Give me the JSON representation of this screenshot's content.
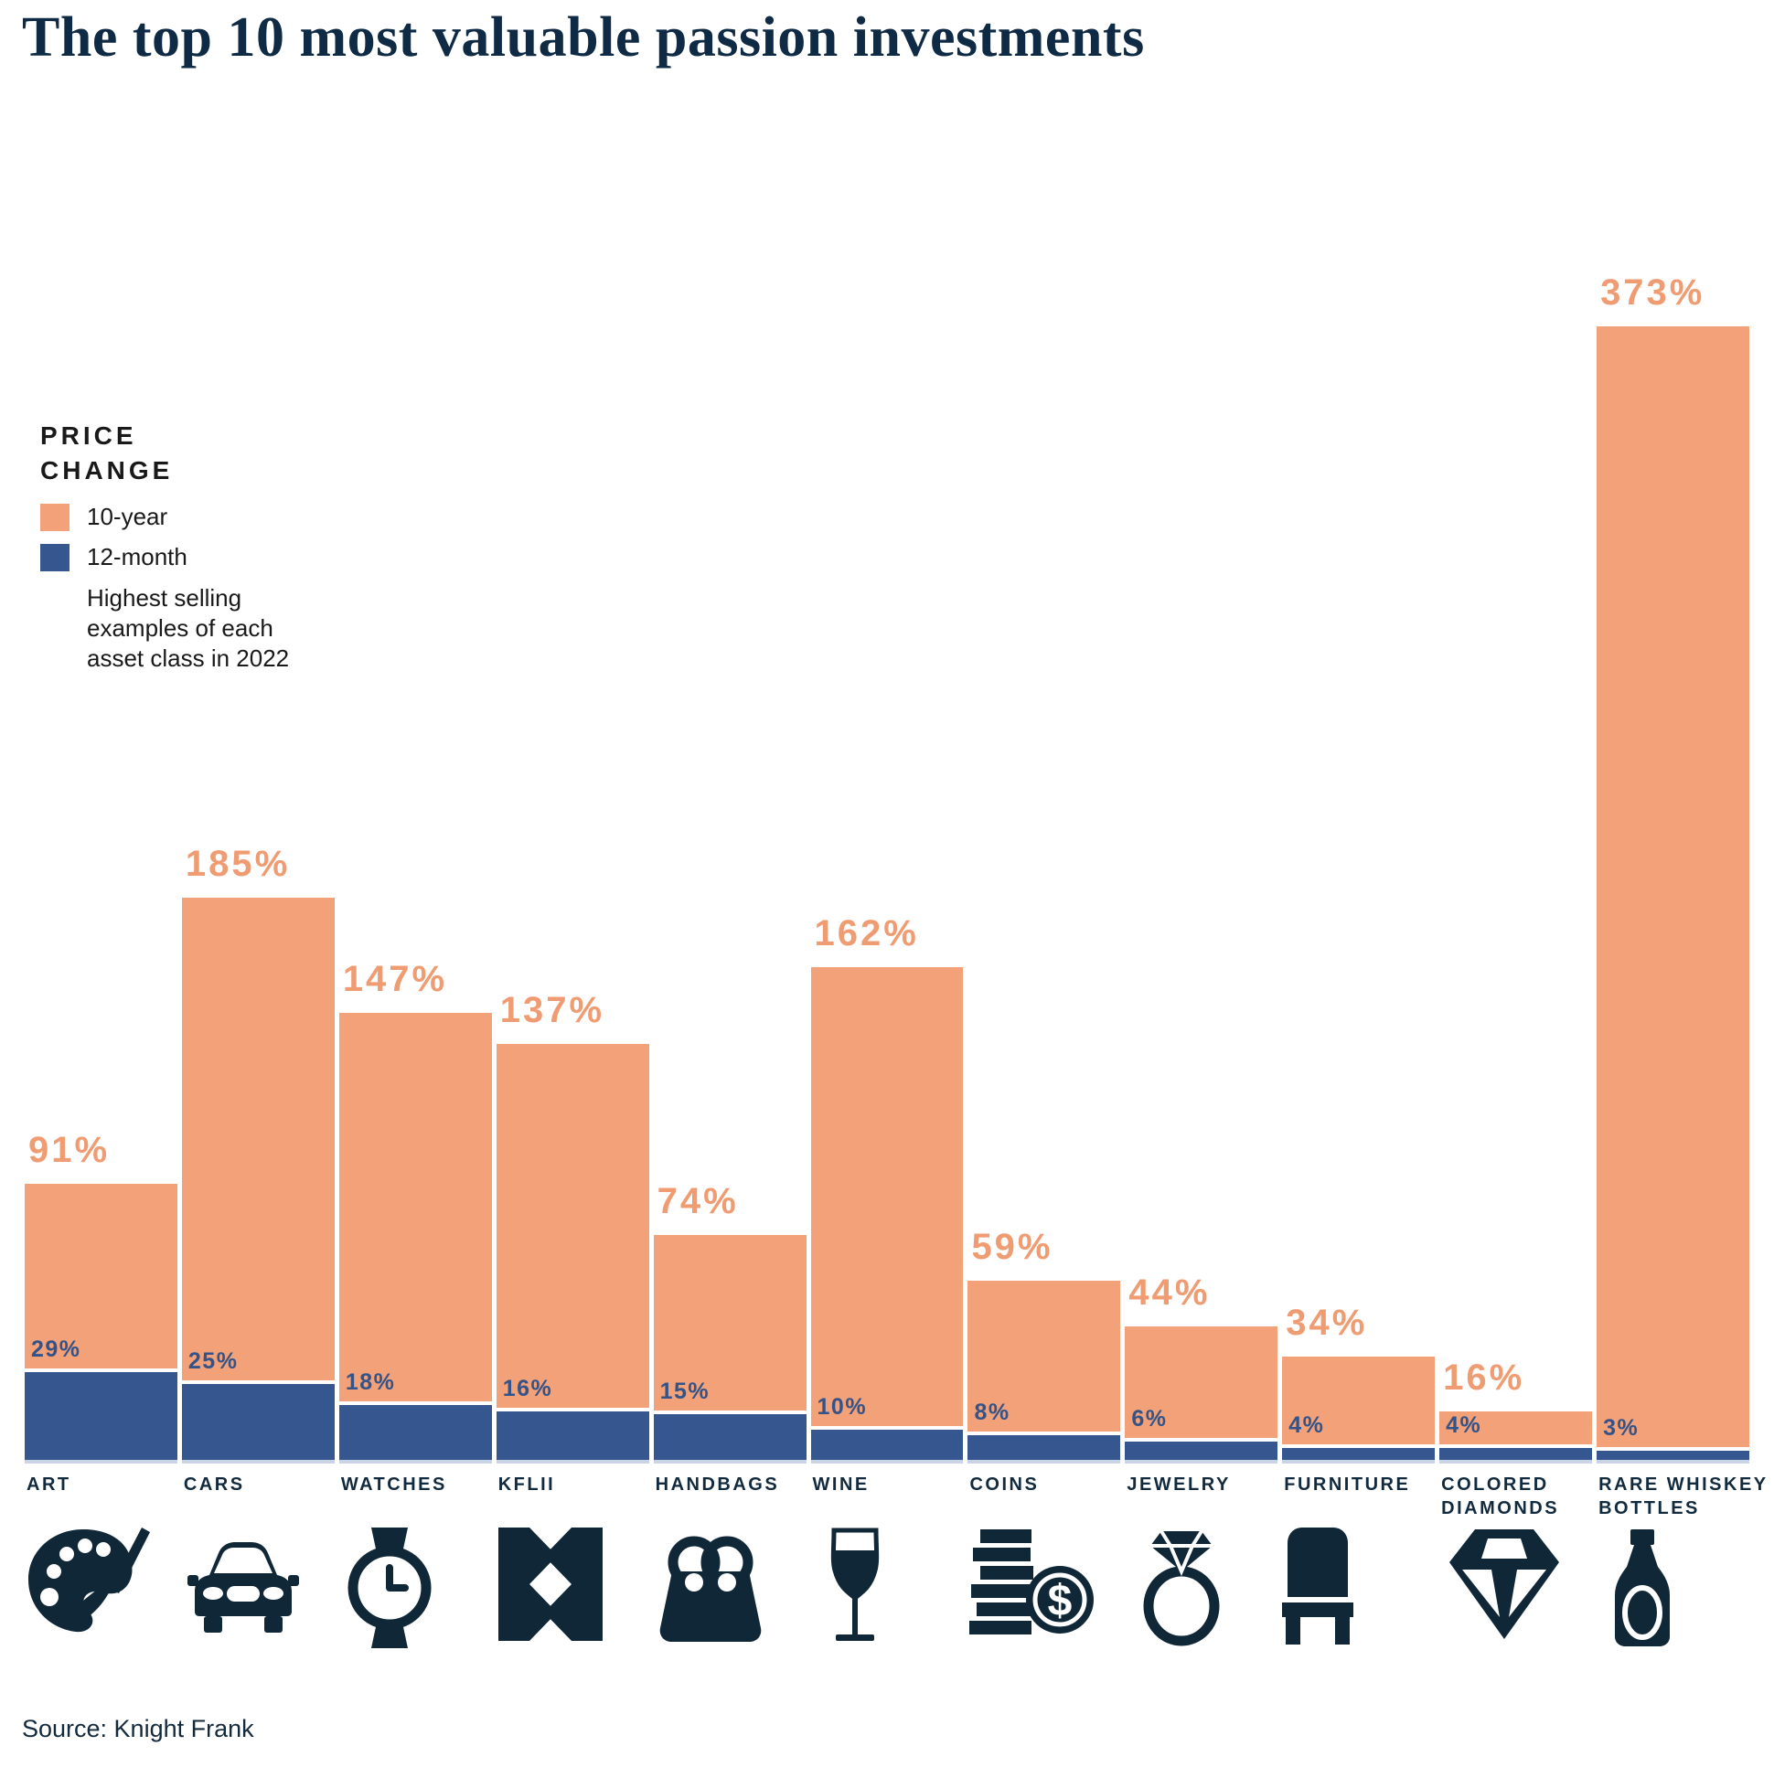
{
  "title": "The top 10 most valuable passion investments",
  "source": "Source: Knight Frank",
  "legend": {
    "title": "PRICE\nCHANGE",
    "items": [
      {
        "label": "10-year",
        "color": "#F2A178"
      },
      {
        "label": "12-month",
        "color": "#35568F"
      }
    ],
    "note": "Highest selling\nexamples of each\nasset class in 2022"
  },
  "colors": {
    "ten_year_bar": "#F2A178",
    "twelve_month_bar": "#35568F",
    "ten_year_label": "#F09C72",
    "twelve_month_label": "#335389",
    "ink_navy": "#112A3E",
    "background": "#FFFFFF"
  },
  "chart_data": {
    "type": "bar",
    "title": "The top 10 most valuable passion investments",
    "categories": [
      "ART",
      "CARS",
      "WATCHES",
      "KFLII",
      "HANDBAGS",
      "WINE",
      "COINS",
      "JEWELRY",
      "FURNITURE",
      "COLORED DIAMONDS",
      "RARE WHISKEY BOTTLES"
    ],
    "series": [
      {
        "name": "10-year",
        "values": [
          91,
          185,
          147,
          137,
          74,
          162,
          59,
          44,
          34,
          16,
          373
        ]
      },
      {
        "name": "12-month",
        "values": [
          29,
          25,
          18,
          16,
          15,
          10,
          8,
          6,
          4,
          4,
          3
        ]
      }
    ],
    "value_suffix": "%",
    "ylim": [
      0,
      373
    ],
    "grid": false,
    "legend_position": "upper-left",
    "icons": [
      "palette-icon",
      "car-icon",
      "watch-icon",
      "kflii-icon",
      "handbag-icon",
      "wine-glass-icon",
      "coins-icon",
      "ring-icon",
      "chair-icon",
      "diamond-icon",
      "whiskey-bottle-icon"
    ]
  }
}
